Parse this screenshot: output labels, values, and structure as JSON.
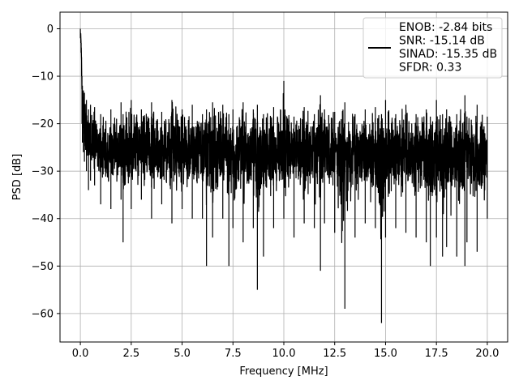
{
  "chart_data": {
    "type": "line",
    "title": "",
    "xlabel": "Frequency [MHz]",
    "ylabel": "PSD [dB]",
    "xlim": [
      -1.0,
      21.0
    ],
    "ylim": [
      -66,
      3.5
    ],
    "xticks": [
      0.0,
      2.5,
      5.0,
      7.5,
      10.0,
      12.5,
      15.0,
      17.5,
      20.0
    ],
    "xtick_labels": [
      "0.0",
      "2.5",
      "5.0",
      "7.5",
      "10.0",
      "12.5",
      "15.0",
      "17.5",
      "20.0"
    ],
    "yticks": [
      0,
      -10,
      -20,
      -30,
      -40,
      -50,
      -60
    ],
    "ytick_labels": [
      "0",
      "−10",
      "−20",
      "−30",
      "−40",
      "−50",
      "−60"
    ],
    "grid": true,
    "legend": {
      "placement": "top-right",
      "lines": [
        "ENOB: -2.84 bits",
        "SNR: -15.14 dB",
        "SINAD: -15.35 dB",
        "SFDR: 0.33"
      ]
    },
    "series": [
      {
        "color": "#000000",
        "x": [
          0.0,
          0.02,
          0.04,
          0.06,
          0.08,
          0.1,
          0.15,
          0.2,
          0.3,
          0.4,
          0.5,
          0.7,
          1.0,
          1.5,
          2.0,
          2.1,
          2.5,
          3.0,
          3.5,
          4.0,
          4.5,
          5.0,
          5.5,
          6.0,
          6.2,
          6.5,
          7.0,
          7.3,
          7.5,
          8.0,
          8.5,
          8.7,
          9.0,
          9.5,
          10.0,
          10.5,
          11.0,
          11.5,
          11.8,
          12.0,
          12.5,
          13.0,
          13.5,
          14.0,
          14.5,
          14.8,
          15.0,
          15.5,
          16.0,
          16.5,
          17.0,
          17.2,
          17.5,
          17.8,
          18.0,
          18.5,
          18.9,
          19.0,
          19.5,
          20.0
        ],
        "upper": [
          0.0,
          -1.0,
          -3.0,
          -6.0,
          -10.0,
          -12.0,
          -13.0,
          -13.5,
          -15.0,
          -17.0,
          -16.0,
          -16.5,
          -18.0,
          -17.0,
          -15.5,
          -18.0,
          -15.0,
          -17.0,
          -15.5,
          -17.5,
          -15.0,
          -17.0,
          -16.0,
          -18.0,
          -17.0,
          -15.5,
          -16.0,
          -18.0,
          -17.0,
          -15.5,
          -17.0,
          -16.0,
          -18.0,
          -16.5,
          -11.0,
          -18.5,
          -16.5,
          -18.0,
          -14.0,
          -17.0,
          -17.5,
          -15.5,
          -18.0,
          -17.0,
          -16.5,
          -18.0,
          -15.0,
          -18.0,
          -16.0,
          -18.0,
          -17.0,
          -18.5,
          -15.0,
          -18.0,
          -17.0,
          -18.0,
          -14.0,
          -18.5,
          -16.0,
          -18.5
        ],
        "lower": [
          -2.0,
          -3.0,
          -5.0,
          -10.0,
          -20.0,
          -24.0,
          -26.0,
          -28.0,
          -30.0,
          -34.0,
          -32.0,
          -33.0,
          -37.0,
          -38.0,
          -36.0,
          -45.0,
          -38.0,
          -36.0,
          -40.0,
          -37.0,
          -41.0,
          -38.0,
          -40.0,
          -40.0,
          -50.0,
          -44.0,
          -40.0,
          -50.0,
          -42.0,
          -45.0,
          -42.0,
          -55.0,
          -48.0,
          -42.0,
          -40.0,
          -44.0,
          -41.0,
          -42.0,
          -51.0,
          -41.0,
          -43.0,
          -59.0,
          -44.0,
          -41.0,
          -42.0,
          -62.0,
          -44.0,
          -42.0,
          -43.0,
          -44.0,
          -45.0,
          -50.0,
          -44.0,
          -48.0,
          -46.0,
          -48.0,
          -50.0,
          -45.0,
          -47.0,
          -40.0
        ],
        "center": [
          -0.5,
          -2.0,
          -4.0,
          -8.0,
          -14.0,
          -18.0,
          -20.0,
          -22.0,
          -23.0,
          -24.0,
          -24.0,
          -25.0,
          -26.0,
          -26.0,
          -26.0,
          -26.0,
          -26.0,
          -26.0,
          -26.0,
          -26.0,
          -26.0,
          -26.0,
          -26.0,
          -26.0,
          -26.0,
          -26.0,
          -26.0,
          -26.0,
          -26.0,
          -26.0,
          -26.0,
          -26.0,
          -26.0,
          -26.0,
          -26.0,
          -26.0,
          -26.0,
          -26.0,
          -26.0,
          -26.0,
          -26.0,
          -26.0,
          -26.0,
          -26.0,
          -26.0,
          -26.0,
          -26.0,
          -26.0,
          -26.0,
          -26.0,
          -26.0,
          -26.0,
          -26.0,
          -26.0,
          -26.0,
          -26.0,
          -26.0,
          -26.0,
          -26.0,
          -26.0
        ]
      }
    ]
  }
}
